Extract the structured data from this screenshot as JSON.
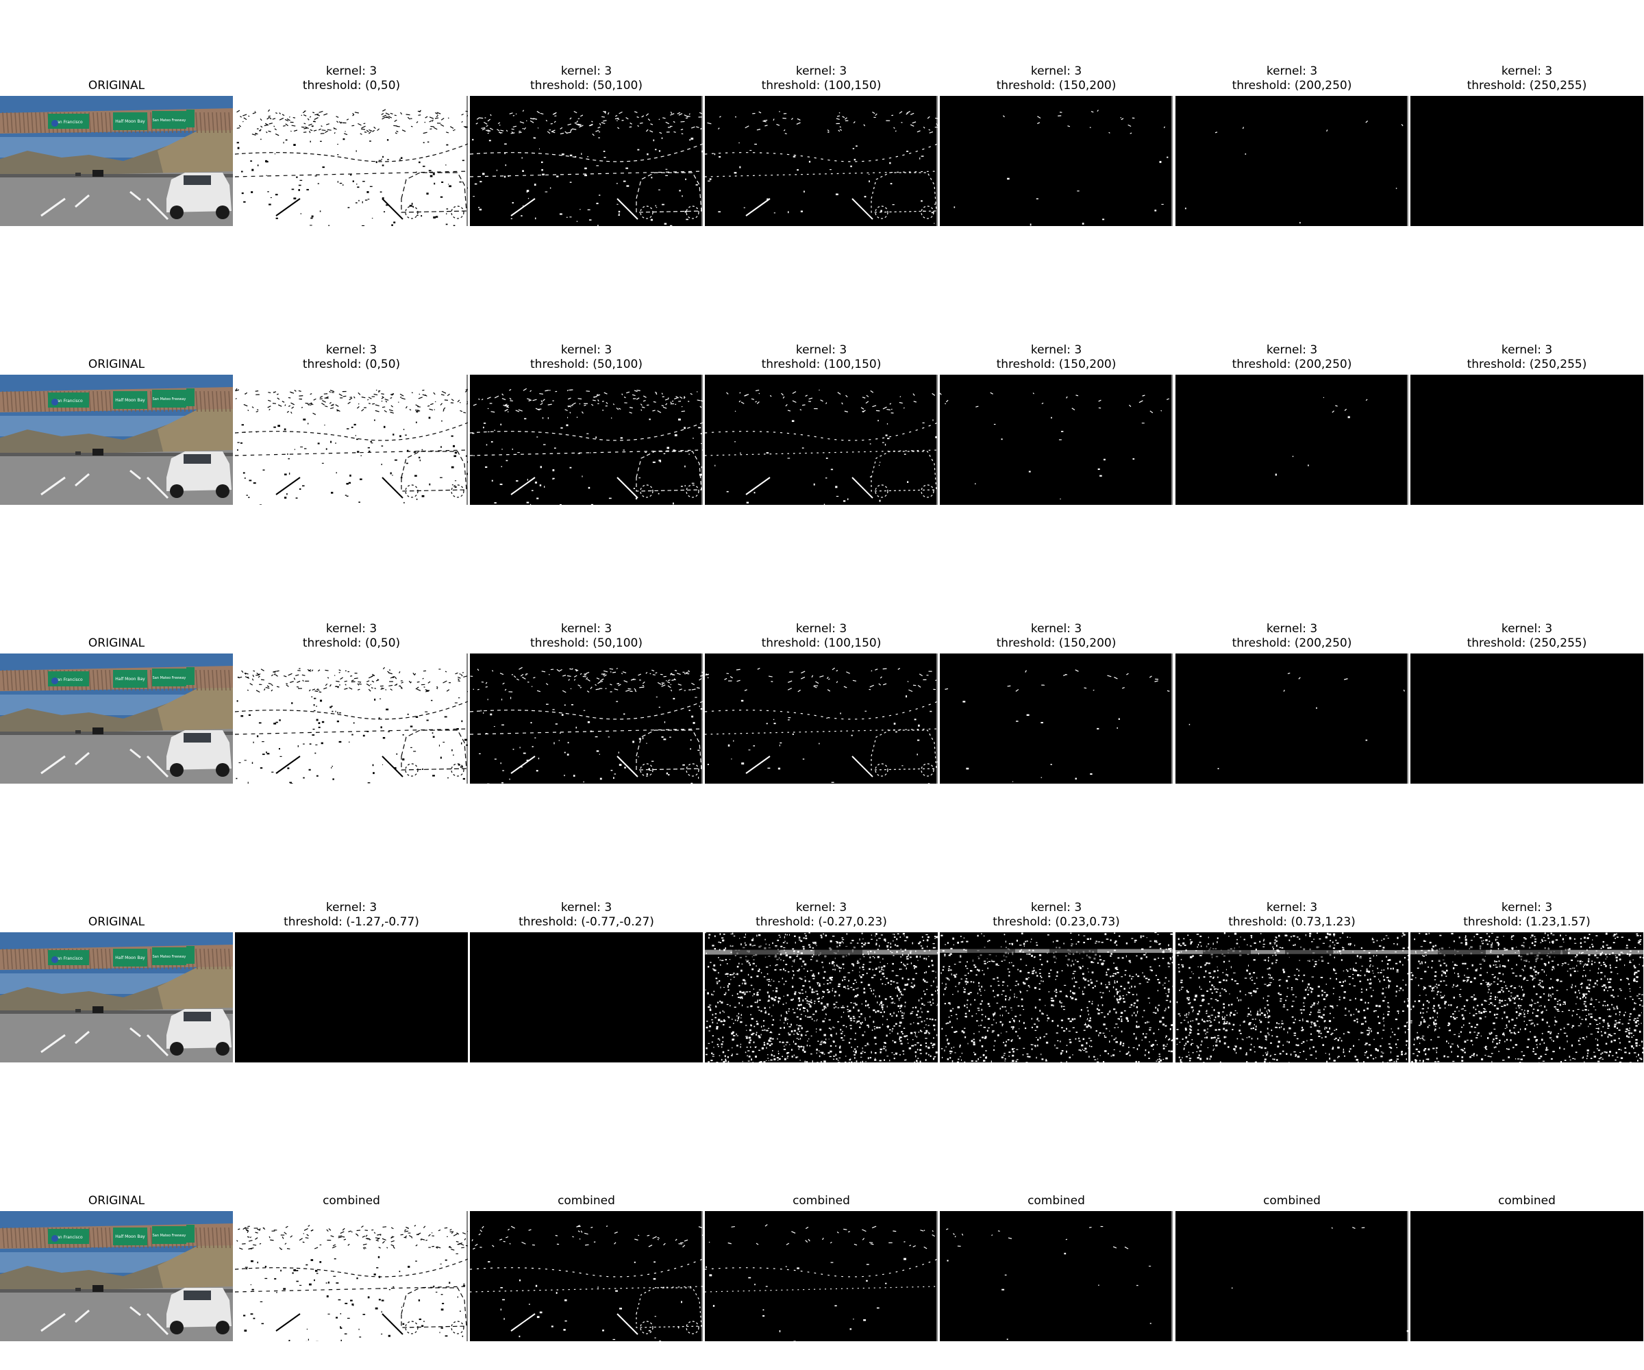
{
  "figure": {
    "rows": [
      {
        "panels": [
          {
            "title": "ORIGINAL",
            "kind": "original",
            "density": 0
          },
          {
            "title": "kernel: 3\nthreshold: (0,50)",
            "kind": "inverted-edges",
            "density": 0.6
          },
          {
            "title": "kernel: 3\nthreshold: (50,100)",
            "kind": "edges",
            "density": 0.5
          },
          {
            "title": "kernel: 3\nthreshold: (100,150)",
            "kind": "edges",
            "density": 0.22
          },
          {
            "title": "kernel: 3\nthreshold: (150,200)",
            "kind": "edges",
            "density": 0.06
          },
          {
            "title": "kernel: 3\nthreshold: (200,250)",
            "kind": "edges",
            "density": 0.02
          },
          {
            "title": "kernel: 3\nthreshold: (250,255)",
            "kind": "edges",
            "density": 0
          }
        ]
      },
      {
        "panels": [
          {
            "title": "ORIGINAL",
            "kind": "original",
            "density": 0
          },
          {
            "title": "kernel: 3\nthreshold: (0,50)",
            "kind": "inverted-edges",
            "density": 0.55
          },
          {
            "title": "kernel: 3\nthreshold: (50,100)",
            "kind": "edges",
            "density": 0.45
          },
          {
            "title": "kernel: 3\nthreshold: (100,150)",
            "kind": "edges",
            "density": 0.2
          },
          {
            "title": "kernel: 3\nthreshold: (150,200)",
            "kind": "edges",
            "density": 0.07
          },
          {
            "title": "kernel: 3\nthreshold: (200,250)",
            "kind": "edges",
            "density": 0.02
          },
          {
            "title": "kernel: 3\nthreshold: (250,255)",
            "kind": "edges",
            "density": 0
          }
        ]
      },
      {
        "panels": [
          {
            "title": "ORIGINAL",
            "kind": "original",
            "density": 0
          },
          {
            "title": "kernel: 3\nthreshold: (0,50)",
            "kind": "inverted-edges",
            "density": 0.6
          },
          {
            "title": "kernel: 3\nthreshold: (50,100)",
            "kind": "edges",
            "density": 0.5
          },
          {
            "title": "kernel: 3\nthreshold: (100,150)",
            "kind": "edges",
            "density": 0.2
          },
          {
            "title": "kernel: 3\nthreshold: (150,200)",
            "kind": "edges",
            "density": 0.07
          },
          {
            "title": "kernel: 3\nthreshold: (200,250)",
            "kind": "edges",
            "density": 0.02
          },
          {
            "title": "kernel: 3\nthreshold: (250,255)",
            "kind": "edges",
            "density": 0
          }
        ]
      },
      {
        "panels": [
          {
            "title": "ORIGINAL",
            "kind": "original",
            "density": 0
          },
          {
            "title": "kernel: 3\nthreshold: (-1.27,-0.77)",
            "kind": "blank",
            "density": 0
          },
          {
            "title": "kernel: 3\nthreshold: (-0.77,-0.27)",
            "kind": "blank",
            "density": 0
          },
          {
            "title": "kernel: 3\nthreshold: (-0.27,0.23)",
            "kind": "noise",
            "density": 0.5
          },
          {
            "title": "kernel: 3\nthreshold: (0.23,0.73)",
            "kind": "noise",
            "density": 0.35
          },
          {
            "title": "kernel: 3\nthreshold: (0.73,1.23)",
            "kind": "noise",
            "density": 0.38
          },
          {
            "title": "kernel: 3\nthreshold: (1.23,1.57)",
            "kind": "noise",
            "density": 0.45
          }
        ]
      },
      {
        "panels": [
          {
            "title": "ORIGINAL",
            "kind": "original",
            "density": 0
          },
          {
            "title": "combined",
            "kind": "inverted-edges",
            "density": 0.55
          },
          {
            "title": "combined",
            "kind": "edges",
            "density": 0.18
          },
          {
            "title": "combined",
            "kind": "edges",
            "density": 0.12
          },
          {
            "title": "combined",
            "kind": "edges",
            "density": 0.05
          },
          {
            "title": "combined",
            "kind": "edges",
            "density": 0.01
          },
          {
            "title": "combined",
            "kind": "edges",
            "density": 0
          }
        ]
      }
    ],
    "sign_texts": {
      "left": "San Francisco",
      "middle": "Half Moon Bay",
      "right": "San Mateo Freeway",
      "route": "280"
    },
    "colors": {
      "sky": "#3e6fa8",
      "bridge": "#9c7a64",
      "sign_green": "#1b8a5a",
      "road": "#8d8d8d",
      "hill": "#7c7460",
      "car": "#e8e8e8"
    }
  }
}
